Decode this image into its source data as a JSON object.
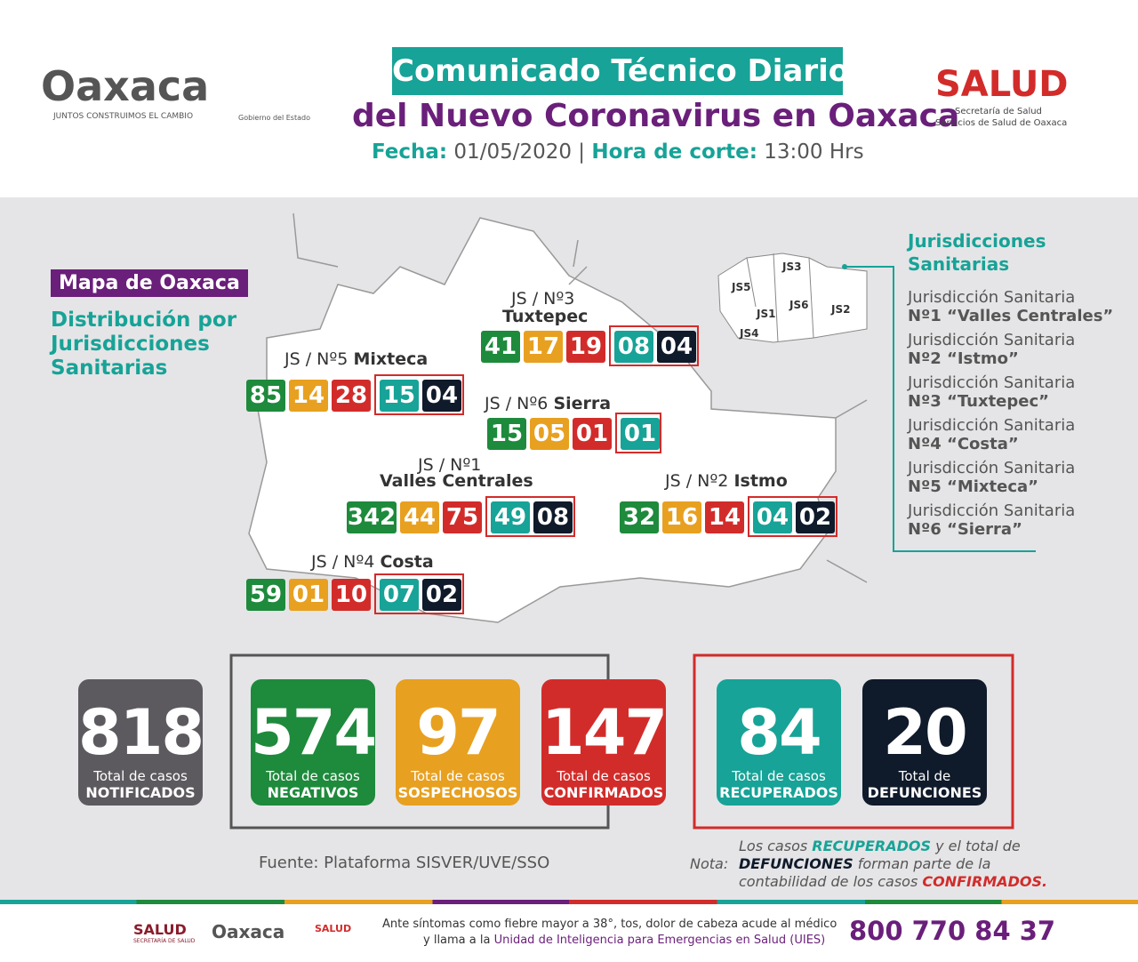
{
  "header": {
    "logo": "Oaxaca",
    "tagline": "JUNTOS CONSTRUIMOS EL CAMBIO",
    "government": "Gobierno del Estado",
    "title_line1": "Comunicado Técnico Diario",
    "title_line2": "del Nuevo Coronavirus en Oaxaca",
    "date_label": "Fecha:",
    "date": "01/05/2020",
    "cut_label": "Hora de corte:",
    "cut": "13:00 Hrs",
    "salud": "SALUD",
    "salud_sub1": "Secretaría de Salud",
    "salud_sub2": "Servicios de Salud de Oaxaca"
  },
  "map": {
    "tag": "Mapa de Oaxaca",
    "subtitle": [
      "Distribución por",
      "Jurisdicciones",
      "Sanitarias"
    ],
    "jurisdictions": [
      {
        "label": "JS / Nº3",
        "name": "Tuxtepec",
        "values": [
          "41",
          "17",
          "19",
          "08",
          "04"
        ]
      },
      {
        "label": "JS / Nº5",
        "name": "Mixteca",
        "values": [
          "85",
          "14",
          "28",
          "15",
          "04"
        ]
      },
      {
        "label": "JS / Nº6",
        "name": "Sierra",
        "values": [
          "15",
          "05",
          "01",
          "01"
        ]
      },
      {
        "label": "JS / Nº1",
        "name": "Valles Centrales",
        "values": [
          "342",
          "44",
          "75",
          "49",
          "08"
        ]
      },
      {
        "label": "JS / Nº2",
        "name": "Istmo",
        "values": [
          "32",
          "16",
          "14",
          "04",
          "02"
        ]
      },
      {
        "label": "JS / Nº4",
        "name": "Costa",
        "values": [
          "59",
          "01",
          "10",
          "07",
          "02"
        ]
      }
    ],
    "minimap_labels": [
      "JS3",
      "JS5",
      "JS6",
      "JS1",
      "JS2",
      "JS4"
    ]
  },
  "legend": {
    "title": [
      "Jurisdicciones",
      "Sanitarias"
    ],
    "items": [
      [
        "Jurisdicción Sanitaria",
        "Nº1 “Valles Centrales”"
      ],
      [
        "Jurisdicción Sanitaria",
        "Nº2 “Istmo”"
      ],
      [
        "Jurisdicción Sanitaria",
        "Nº3 “Tuxtepec”"
      ],
      [
        "Jurisdicción Sanitaria",
        "Nº4 “Costa”"
      ],
      [
        "Jurisdicción Sanitaria",
        "Nº5 “Mixteca”"
      ],
      [
        "Jurisdicción Sanitaria",
        "Nº6 “Sierra”"
      ]
    ]
  },
  "totals": [
    {
      "value": 818,
      "line1": "Total de casos",
      "line2": "NOTIFICADOS"
    },
    {
      "value": 574,
      "line1": "Total de casos",
      "line2": "NEGATIVOS"
    },
    {
      "value": 97,
      "line1": "Total de casos",
      "line2": "SOSPECHOSOS"
    },
    {
      "value": 147,
      "line1": "Total de casos",
      "line2": "CONFIRMADOS"
    },
    {
      "value": 84,
      "line1": "Total de casos",
      "line2": "RECUPERADOS"
    },
    {
      "value": 20,
      "line1": "Total de",
      "line2": "DEFUNCIONES"
    }
  ],
  "source": "Fuente: Plataforma SISVER/UVE/SSO",
  "note": {
    "label": "Nota:",
    "a": "Los casos ",
    "b": "RECUPERADOS",
    "c": " y el total de",
    "d": "DEFUNCIONES",
    "e": " forman parte de la",
    "f": "contabilidad de los casos ",
    "g": "CONFIRMADOS."
  },
  "footer": {
    "salud": "SALUD",
    "salud_sub": "SECRETARÍA DE SALUD",
    "logo": "Oaxaca",
    "salud2": "SALUD",
    "line1": "Ante síntomas como fiebre mayor a 38°, tos, dolor de cabeza acude al médico",
    "line2a": "y llama a la ",
    "line2b": "Unidad de Inteligencia para Emergencias en Salud (UIES)",
    "phone": "800 770 84 37"
  }
}
